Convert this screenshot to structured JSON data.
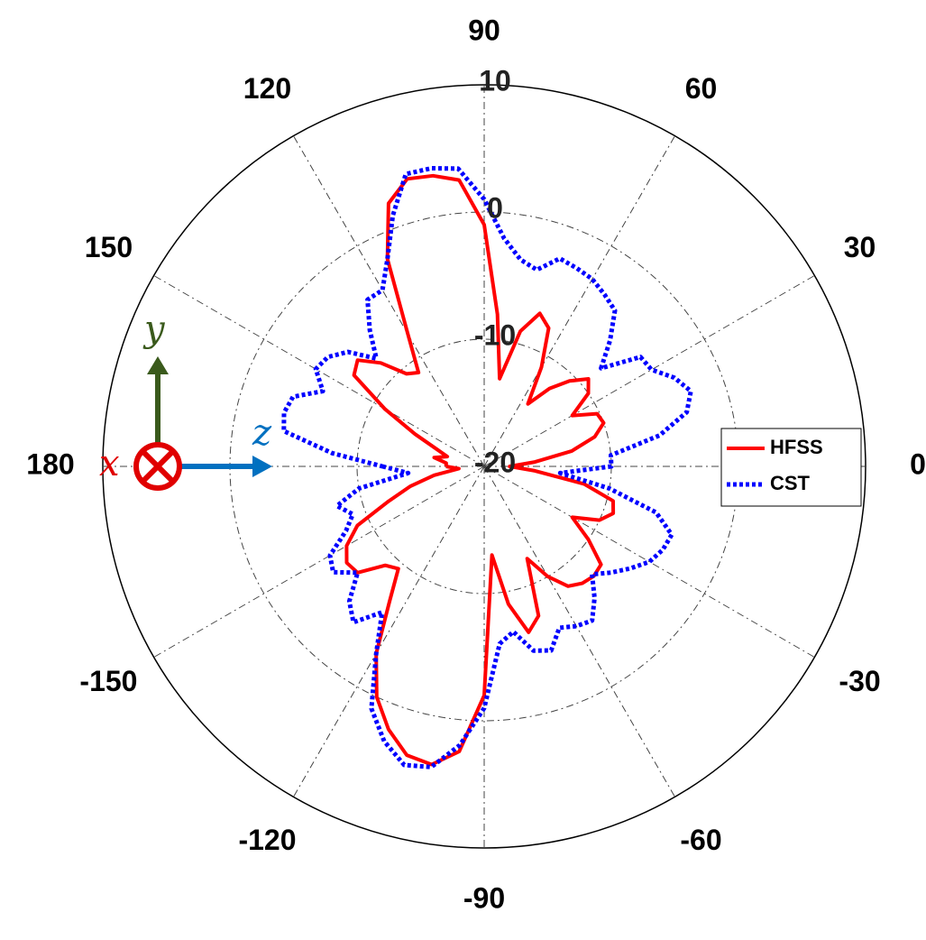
{
  "chart_data": {
    "type": "polar",
    "theta": [
      -180,
      -175,
      -170,
      -165,
      -160,
      -155,
      -150,
      -145,
      -140,
      -135,
      -130,
      -125,
      -120,
      -115,
      -110,
      -105,
      -100,
      -95,
      -90,
      -85,
      -80,
      -75,
      -70,
      -65,
      -60,
      -55,
      -50,
      -45,
      -40,
      -35,
      -30,
      -25,
      -20,
      -15,
      -10,
      -5,
      0,
      5,
      10,
      15,
      20,
      25,
      30,
      35,
      40,
      45,
      50,
      55,
      60,
      65,
      70,
      75,
      80,
      85,
      90,
      95,
      100,
      105,
      110,
      115,
      120,
      125,
      130,
      135,
      140,
      145,
      150,
      155,
      160,
      165,
      170,
      175,
      180
    ],
    "series": [
      {
        "name": "HFSS",
        "color": "#ff0000",
        "dash": "solid",
        "values": [
          -17,
          -18,
          -16,
          -14,
          -12,
          -9,
          -7.5,
          -6.8,
          -7,
          -9,
          -9.5,
          -7,
          -3,
          0,
          2,
          3.5,
          3.8,
          2.5,
          -2,
          -13,
          -9,
          -6.5,
          -7.5,
          -12,
          -10,
          -8.5,
          -8,
          -7.8,
          -8,
          -10,
          -12,
          -10,
          -9.2,
          -9.5,
          -12,
          -16,
          -18,
          -16,
          -13,
          -11,
          -10,
          -10.2,
          -12,
          -10,
          -9.3,
          -10.5,
          -12,
          -14,
          -11,
          -8,
          -7.2,
          -9,
          -13,
          -8,
          -1,
          2.6,
          3.2,
          3.4,
          2,
          -2,
          -8,
          -11,
          -10.5,
          -8.5,
          -7,
          -7.5,
          -11,
          -14,
          -16,
          -17,
          -16,
          -17,
          -17
        ]
      },
      {
        "name": "CST",
        "color": "#0000ff",
        "dash": "dotted",
        "values": [
          -12,
          -14,
          -10,
          -8,
          -9,
          -8,
          -6,
          -5.5,
          -7,
          -5,
          -4,
          -6,
          -3,
          1,
          3,
          4.3,
          4,
          2,
          -1,
          -6,
          -6.8,
          -5,
          -4.6,
          -6,
          -5.5,
          -5.2,
          -6.5,
          -8,
          -7,
          -6,
          -5,
          -4.5,
          -4.3,
          -6,
          -10,
          -14,
          -10,
          -10,
          -6,
          -3.5,
          -2.7,
          -3.5,
          -4.8,
          -5,
          -8,
          -6,
          -4,
          -3.5,
          -3,
          -2.8,
          -2.6,
          -4,
          -3.5,
          -2,
          1,
          3.5,
          3.8,
          3.8,
          1,
          -2,
          -4,
          -4,
          -6,
          -8,
          -6,
          -5,
          -4.7,
          -6,
          -4,
          -3.7,
          -4,
          -8,
          -12
        ]
      }
    ],
    "rlim": [
      -20,
      10
    ],
    "rticks": [
      -20,
      -10,
      0,
      10
    ],
    "thetaticks": [
      0,
      30,
      60,
      90,
      120,
      150,
      180,
      -150,
      -120,
      -90,
      -60,
      -30
    ],
    "legend": "right",
    "annotations": [
      "y",
      "x",
      "z"
    ]
  }
}
